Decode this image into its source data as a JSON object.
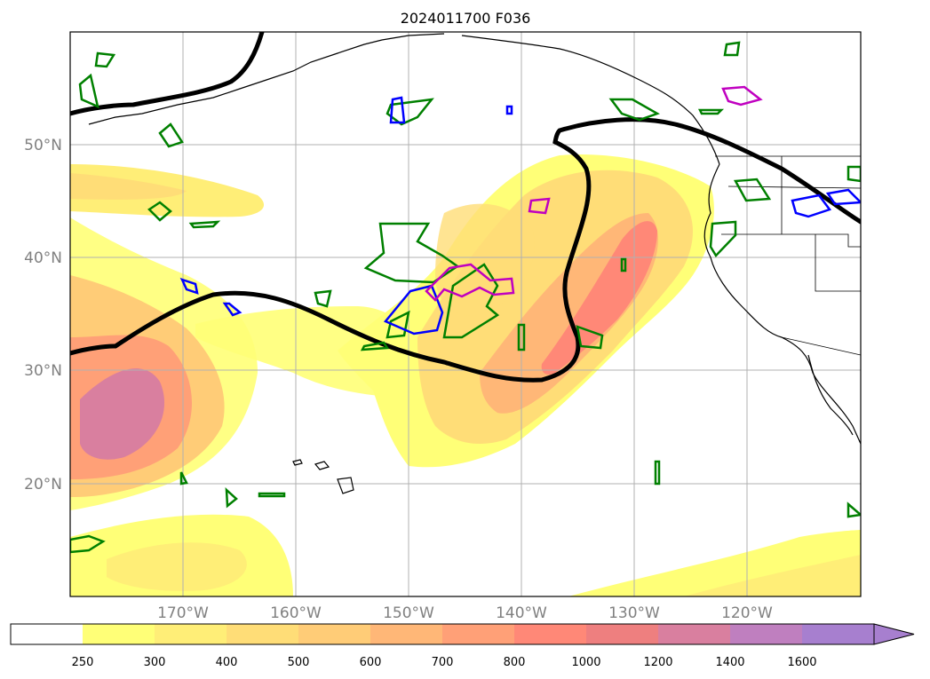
{
  "title": "2024011700 F036",
  "map": {
    "lon_range": [
      -180,
      -110
    ],
    "lat_range": [
      10,
      60
    ],
    "lat_labels": [
      "20°N",
      "30°N",
      "40°N",
      "50°N"
    ],
    "lon_labels": [
      "170°W",
      "160°W",
      "150°W",
      "140°W",
      "130°W",
      "120°W"
    ],
    "field": "integrated vapor transport (filled contours)",
    "overlays": [
      "black thick jet axis line",
      "green contours",
      "blue contours",
      "magenta contours"
    ]
  },
  "colorbar": {
    "labels": [
      "250",
      "300",
      "400",
      "500",
      "600",
      "700",
      "800",
      "1000",
      "1200",
      "1400",
      "1600"
    ],
    "colors": [
      "#ffffff",
      "#ffff77",
      "#ffee77",
      "#ffdd77",
      "#ffcc77",
      "#ffb777",
      "#ffa077",
      "#ff8877",
      "#ee7f7f",
      "#d97f9f",
      "#bf7fbf",
      "#a77fcf"
    ],
    "extend": "max"
  },
  "colors": {
    "ridge_line": "#000000",
    "green_contour": "#008000",
    "blue_contour": "#0000ff",
    "magenta_contour": "#c000c0",
    "grid": "#b0b0b0",
    "label": "#808080"
  }
}
